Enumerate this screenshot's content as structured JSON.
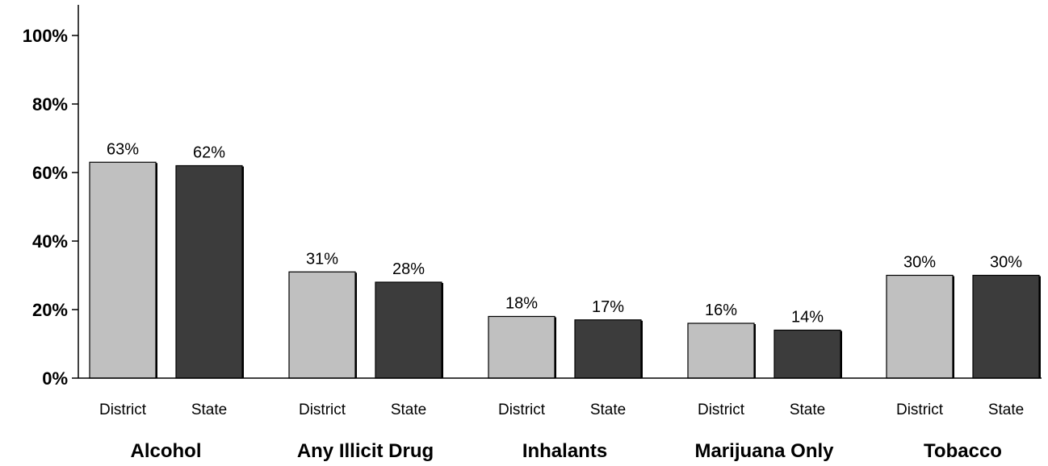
{
  "chart_data": {
    "type": "bar",
    "categories": [
      "Alcohol",
      "Any Illicit Drug",
      "Inhalants",
      "Marijuana Only",
      "Tobacco"
    ],
    "series": [
      {
        "name": "District",
        "values": [
          63,
          31,
          18,
          16,
          30
        ]
      },
      {
        "name": "State",
        "values": [
          62,
          28,
          17,
          14,
          30
        ]
      }
    ],
    "value_labels": [
      [
        "63%",
        "62%"
      ],
      [
        "31%",
        "28%"
      ],
      [
        "18%",
        "17%"
      ],
      [
        "16%",
        "14%"
      ],
      [
        "30%",
        "30%"
      ]
    ],
    "ylim": [
      0,
      100
    ],
    "yticks": [
      "0%",
      "20%",
      "40%",
      "60%",
      "80%",
      "100%"
    ],
    "title": "",
    "xlabel": "",
    "ylabel": "",
    "legend": "none",
    "grid": false,
    "colors": {
      "District": "#c0c0c0",
      "State": "#3c3c3c"
    }
  }
}
